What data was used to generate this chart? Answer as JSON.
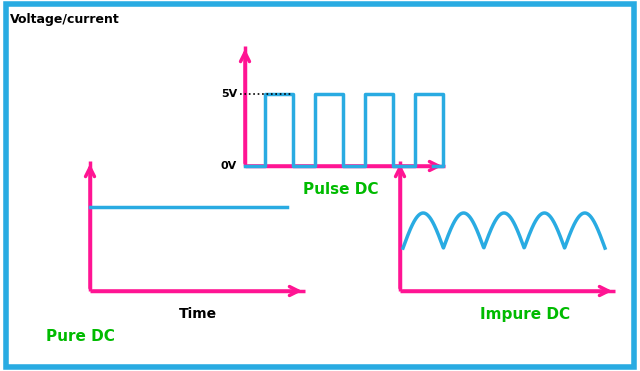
{
  "bg_color": "#ffffff",
  "border_color": "#29abE2",
  "border_lw": 4,
  "axis_color": "#ff1493",
  "wave_color": "#29abE2",
  "label_color_green": "#00bb00",
  "label_color_black": "#000000",
  "axis_lw": 2.5,
  "wave_lw": 2.5,
  "title_text": "Voltage/current",
  "pure_dc_label": "Pure DC",
  "impure_dc_label": "Impure DC",
  "pulse_dc_label": "Pulse DC",
  "time_label": "Time",
  "5v_label": "5V",
  "0v_label": "0V",
  "panel1": {
    "ox": 90,
    "oy": 80,
    "xlen": 215,
    "ylen": 130
  },
  "panel2": {
    "ox": 400,
    "oy": 80,
    "xlen": 215,
    "ylen": 130
  },
  "panel3": {
    "ox": 245,
    "oy": 205,
    "xlen": 200,
    "ylen": 120
  }
}
